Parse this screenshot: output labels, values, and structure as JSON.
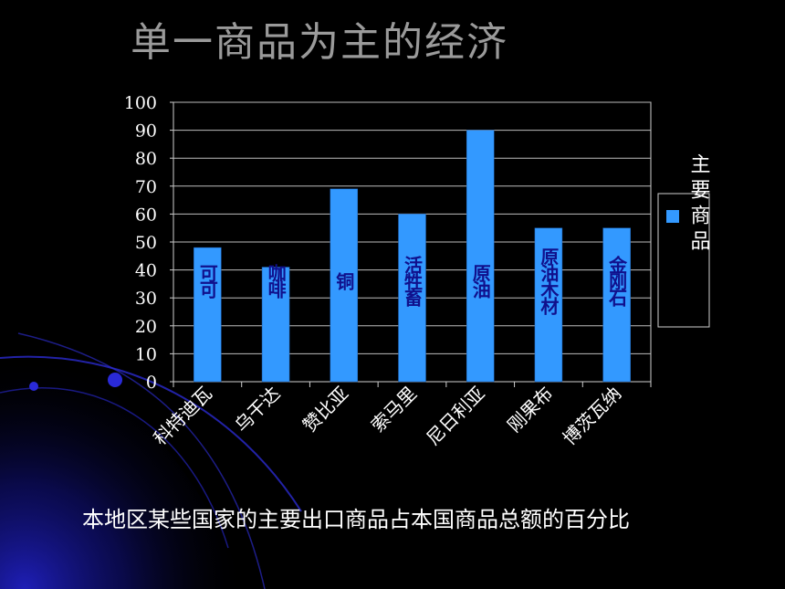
{
  "slide": {
    "title": "单一商品为主的经济",
    "caption": "本地区某些国家的主要出口商品占本国商品总额的百分比"
  },
  "colors": {
    "background": "#000000",
    "bar": "#3399ff",
    "title": "#9a9a9a",
    "bar_label": "#10108c",
    "accent": "#1a1ab0"
  },
  "chart_data": {
    "type": "bar",
    "categories": [
      "科特迪瓦",
      "乌干达",
      "赞比亚",
      "索马里",
      "尼日利亚",
      "刚果布",
      "博茨瓦纳"
    ],
    "series": [
      {
        "name": "主要商品",
        "values": [
          48,
          41,
          69,
          60,
          90,
          55,
          55
        ]
      }
    ],
    "bar_labels": [
      "可可",
      "咖啡",
      "铜",
      "活牲畜",
      "原油",
      "原油木材",
      "金刚石"
    ],
    "ylim": [
      0,
      100
    ],
    "yticks": [
      0,
      10,
      20,
      30,
      40,
      50,
      60,
      70,
      80,
      90,
      100
    ],
    "grid": true,
    "legend_position": "right"
  }
}
